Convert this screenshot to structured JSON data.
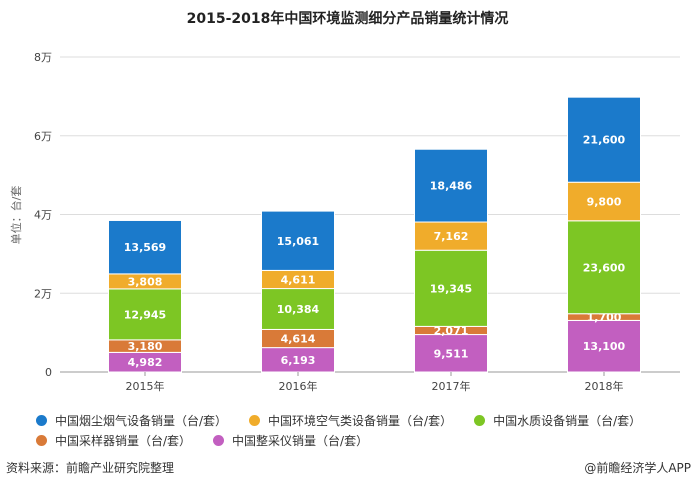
{
  "chart_data": {
    "type": "bar",
    "stacked": true,
    "title": "2015-2018年中国环境监测细分产品销量统计情况",
    "ylabel": "单位：台/套",
    "xlabel": "",
    "categories": [
      "2015年",
      "2016年",
      "2017年",
      "2018年"
    ],
    "ylim": [
      0,
      80000
    ],
    "yticks": [
      0,
      20000,
      40000,
      60000,
      80000
    ],
    "ytick_labels": [
      "0",
      "2万",
      "4万",
      "6万",
      "8万"
    ],
    "grid": true,
    "legend_position": "bottom",
    "series": [
      {
        "name": "中国整采仪销量（台/套）",
        "color": "#c25fc0",
        "values": [
          4982,
          6193,
          9511,
          13100
        ],
        "labels": [
          "4,982",
          "6,193",
          "9,511",
          "13,100"
        ]
      },
      {
        "name": "中国采样器销量（台/套）",
        "color": "#d97a38",
        "values": [
          3180,
          4614,
          2071,
          1700
        ],
        "labels": [
          "3,180",
          "4,614",
          "2,071",
          "1,700"
        ]
      },
      {
        "name": "中国水质设备销量（台/套）",
        "color": "#7dc624",
        "values": [
          12945,
          10384,
          19345,
          23600
        ],
        "labels": [
          "12,945",
          "10,384",
          "19,345",
          "23,600"
        ]
      },
      {
        "name": "中国环境空气类设备销量（台/套）",
        "color": "#f0ac2b",
        "values": [
          3808,
          4611,
          7162,
          9800
        ],
        "labels": [
          "3,808",
          "4,611",
          "7,162",
          "9,800"
        ]
      },
      {
        "name": "中国烟尘烟气设备销量（台/套）",
        "color": "#1b7acb",
        "values": [
          13569,
          15061,
          18486,
          21600
        ],
        "labels": [
          "13,569",
          "15,061",
          "18,486",
          "21,600"
        ]
      }
    ],
    "legend_order": [
      4,
      3,
      2,
      1,
      0
    ]
  },
  "footer": {
    "source": "资料来源：前瞻产业研究院整理",
    "credit": "@前瞻经济学人APP"
  },
  "watermark": "前瞻产业研究院"
}
